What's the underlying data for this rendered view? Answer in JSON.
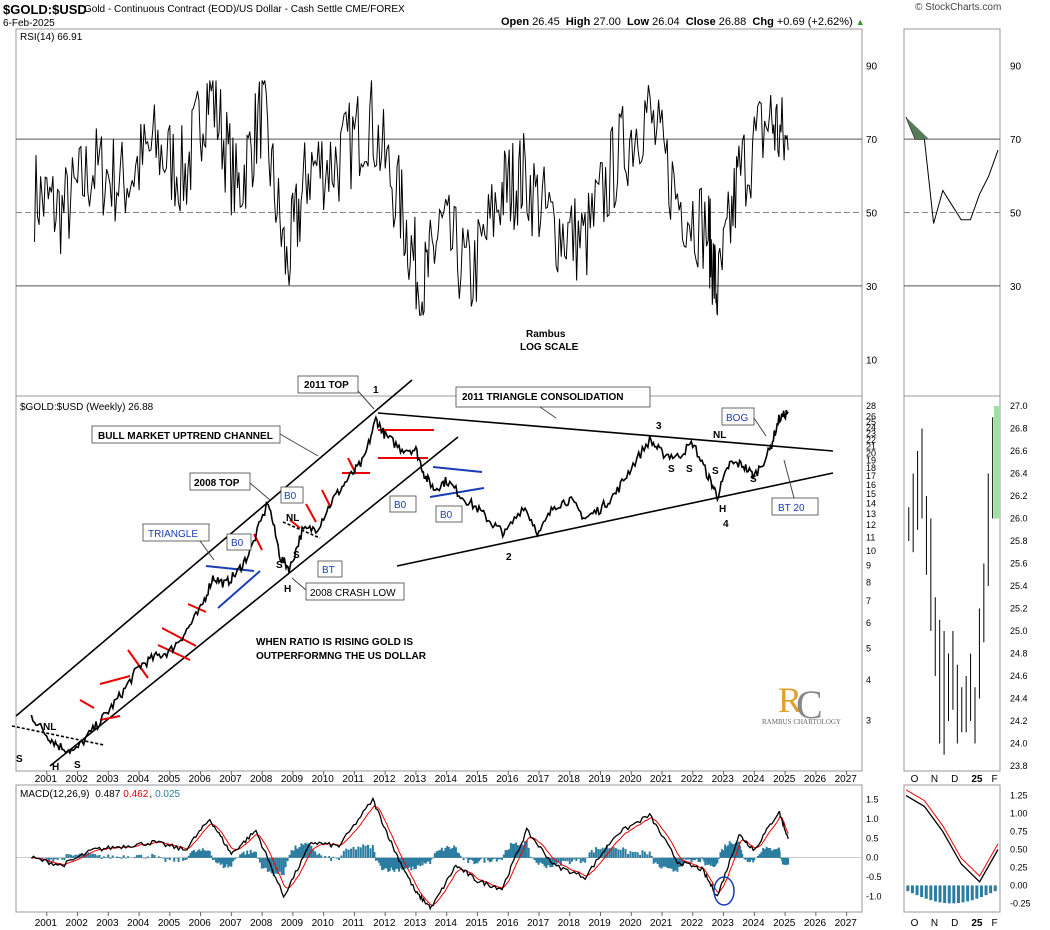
{
  "header": {
    "symbol": "$GOLD:$USD",
    "description": "Gold - Continuous Contract (EOD)/US Dollar - Cash Settle CME/FOREX",
    "date": "6-Feb-2025",
    "open_label": "Open",
    "open": "26.45",
    "high_label": "High",
    "high": "27.00",
    "low_label": "Low",
    "low": "26.04",
    "close_label": "Close",
    "close": "26.88",
    "chg_label": "Chg",
    "chg": "+0.69 (+2.62%)",
    "brand": "© StockCharts.com"
  },
  "chart_data": [
    {
      "type": "line",
      "panel": "rsi",
      "legend": "RSI(14) 66.91",
      "ylim": [
        0,
        100
      ],
      "yticks": [
        10,
        30,
        50,
        70,
        90
      ],
      "reference_lines": [
        30,
        50,
        70
      ],
      "series": [
        {
          "name": "RSI(14)",
          "x": [
            2000.6,
            2001.5,
            2002.5,
            2003.5,
            2004.5,
            2005.5,
            2006.3,
            2007.2,
            2008.0,
            2008.8,
            2009.5,
            2010.5,
            2011.5,
            2012.5,
            2013.2,
            2013.8,
            2014.8,
            2015.8,
            2016.5,
            2017.5,
            2018.5,
            2019.5,
            2020.5,
            2021.5,
            2022.5,
            2022.8,
            2023.5,
            2024.5,
            2025.1
          ],
          "y": [
            55,
            50,
            62,
            58,
            68,
            60,
            85,
            55,
            78,
            35,
            62,
            64,
            76,
            52,
            28,
            46,
            32,
            56,
            60,
            46,
            42,
            64,
            78,
            54,
            45,
            27,
            60,
            76,
            67
          ]
        }
      ]
    },
    {
      "type": "line",
      "panel": "price",
      "legend": "$GOLD:$USD (Weekly) 26.88",
      "scale": "log",
      "ylim": [
        2.2,
        28
      ],
      "yticks": [
        3,
        4,
        5,
        6,
        7,
        8,
        9,
        10,
        11,
        12,
        13,
        14,
        15,
        16,
        17,
        18,
        19,
        20,
        21,
        22,
        23,
        24,
        25,
        26,
        28
      ],
      "xticks": [
        "2001",
        "2002",
        "2003",
        "2004",
        "2005",
        "2006",
        "2007",
        "2008",
        "2009",
        "2010",
        "2011",
        "2012",
        "2013",
        "2014",
        "2015",
        "2016",
        "2017",
        "2018",
        "2019",
        "2020",
        "2021",
        "2022",
        "2023",
        "2024",
        "2025",
        "2026",
        "2027"
      ],
      "series": [
        {
          "name": "$GOLD:$USD",
          "x": [
            2000.5,
            2001.0,
            2001.4,
            2001.9,
            2002.5,
            2003.0,
            2003.5,
            2004.0,
            2004.5,
            2005.0,
            2005.5,
            2006.0,
            2006.4,
            2006.8,
            2007.2,
            2007.6,
            2008.2,
            2008.6,
            2008.9,
            2009.3,
            2009.8,
            2010.3,
            2010.8,
            2011.3,
            2011.7,
            2012.0,
            2012.5,
            2013.0,
            2013.3,
            2013.6,
            2014.0,
            2014.5,
            2015.0,
            2015.5,
            2015.9,
            2016.5,
            2017.0,
            2017.5,
            2018.0,
            2018.5,
            2019.0,
            2019.5,
            2020.0,
            2020.6,
            2021.0,
            2021.5,
            2022.0,
            2022.5,
            2022.8,
            2023.2,
            2023.6,
            2024.0,
            2024.5,
            2024.8,
            2025.1
          ],
          "y": [
            3.1,
            2.7,
            2.5,
            2.4,
            2.8,
            3.2,
            3.7,
            4.4,
            4.7,
            4.9,
            5.6,
            6.6,
            8.3,
            7.9,
            8.6,
            9.9,
            14.2,
            9.5,
            8.8,
            11.5,
            11.8,
            14.4,
            16.7,
            19.0,
            25.5,
            22.7,
            20.7,
            20.5,
            17.0,
            15.5,
            16.5,
            14.7,
            13.5,
            12.1,
            11.3,
            13.8,
            11.3,
            13.8,
            14.4,
            12.6,
            13.5,
            15.1,
            18.1,
            22.0,
            20.0,
            19.5,
            21.5,
            17.0,
            14.8,
            18.6,
            18.5,
            17.0,
            20.4,
            25.5,
            26.88
          ]
        }
      ],
      "annotations": {
        "title": "Rambus",
        "subtitle": "LOG SCALE",
        "a_2011top": "2011 TOP",
        "a_1": "1",
        "a_triangle_consolidation": "2011 TRIANGLE CONSOLIDATION",
        "a_bull_channel": "BULL MARKET UPTREND CHANNEL",
        "a_2008top": "2008 TOP",
        "a_triangle": "TRIANGLE",
        "a_bo1": "B0",
        "a_bo2": "B0",
        "a_bo3": "B0",
        "a_bo4": "B0",
        "a_bt": "BT",
        "a_bog": "BOG",
        "a_bt20": "BT 20",
        "a_crash": "2008 CRASH LOW",
        "a_ratio1": "WHEN RATIO IS RISING GOLD IS",
        "a_ratio2": "OUTPERFORMNG THE US DOLLAR",
        "a_nl1": "NL",
        "a_nl2": "NL",
        "a_nl3": "NL",
        "a_s1": "S",
        "a_h1": "H",
        "a_s2": "S",
        "a_s3": "S",
        "a_h2": "H",
        "a_s4": "S",
        "a_2": "2",
        "a_3": "3",
        "a_4": "4",
        "a_s5": "S",
        "a_s6": "S",
        "a_s7": "S",
        "a_h3": "H",
        "a_s8": "S",
        "logo": "RAMBUS CHARTOLOGY"
      }
    },
    {
      "type": "line",
      "panel": "macd",
      "legend_prefix": "MACD(12,26,9)",
      "macd": "0.487",
      "signal": "0.462",
      "hist": "0.025",
      "ylim": [
        -1.35,
        1.75
      ],
      "yticks": [
        -1.0,
        -0.5,
        0.0,
        0.5,
        1.0,
        1.5
      ],
      "ytick_labels": [
        "-1.0",
        "-0.5",
        "0.0",
        "0.5",
        "1.0",
        "1.5"
      ],
      "series": [
        {
          "name": "MACD",
          "x": [
            2000.5,
            2001.5,
            2002.5,
            2003.5,
            2004.5,
            2005.5,
            2006.3,
            2007.0,
            2007.8,
            2008.7,
            2009.6,
            2010.5,
            2011.6,
            2012.3,
            2013.0,
            2013.5,
            2014.3,
            2015.0,
            2015.8,
            2016.6,
            2017.5,
            2018.5,
            2019.5,
            2020.6,
            2021.5,
            2022.3,
            2022.8,
            2023.5,
            2024.0,
            2024.8,
            2025.1
          ],
          "y": [
            0.0,
            -0.2,
            0.2,
            0.3,
            0.4,
            0.2,
            1.0,
            0.1,
            0.7,
            -1.0,
            0.4,
            0.3,
            1.5,
            0.2,
            -0.9,
            -1.3,
            -0.2,
            -0.6,
            -0.8,
            0.7,
            -0.2,
            -0.5,
            0.6,
            1.1,
            -0.1,
            -0.3,
            -1.0,
            0.6,
            0.2,
            1.2,
            0.49
          ]
        }
      ]
    },
    {
      "type": "line",
      "panel": "rsi-daily",
      "yticks": [
        30,
        50,
        70,
        90
      ],
      "series": [
        {
          "name": "RSI(14)",
          "x": [
            0,
            0.1,
            0.2,
            0.3,
            0.4,
            0.5,
            0.6,
            0.7,
            0.8,
            0.9,
            1.0
          ],
          "y": [
            76,
            70,
            70,
            47,
            56,
            52,
            48,
            48,
            55,
            60,
            67
          ]
        }
      ]
    },
    {
      "type": "bar",
      "panel": "price-daily",
      "yticks": [
        "23.8",
        "24.0",
        "24.2",
        "24.4",
        "24.6",
        "24.8",
        "25.0",
        "25.2",
        "25.4",
        "25.6",
        "25.8",
        "26.0",
        "26.2",
        "26.4",
        "26.6",
        "26.8",
        "27.0"
      ],
      "xticks": [
        "O",
        "N",
        "D",
        "25",
        "F"
      ]
    },
    {
      "type": "line",
      "panel": "macd-daily",
      "yticks": [
        "1.25",
        "1.00",
        "0.75",
        "0.50",
        "0.25",
        "0.00",
        "-0.25"
      ],
      "xticks": [
        "O",
        "N",
        "D",
        "25",
        "F"
      ],
      "series": [
        {
          "name": "MACD",
          "x": [
            0,
            0.2,
            0.4,
            0.6,
            0.8,
            1.0
          ],
          "y": [
            1.25,
            1.1,
            0.75,
            0.3,
            0.05,
            0.5
          ]
        }
      ]
    }
  ]
}
